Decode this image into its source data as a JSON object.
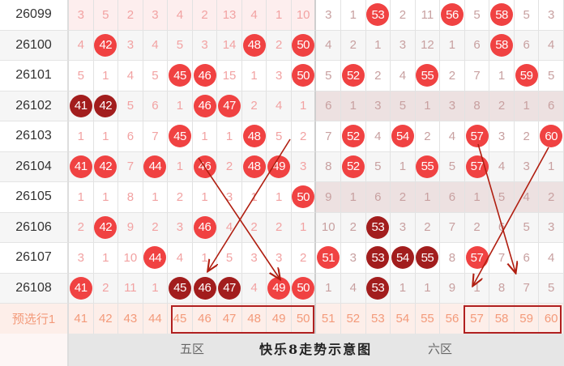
{
  "rows": [
    {
      "issue": "26099",
      "cells": [
        "3",
        "5",
        "2",
        "3",
        "4",
        "2",
        "13",
        "4",
        "1",
        "10",
        "3",
        "1",
        "53",
        "2",
        "11",
        "56",
        "5",
        "58",
        "5",
        "3"
      ],
      "hits": [
        "53",
        "56",
        "58"
      ],
      "repeats": []
    },
    {
      "issue": "26100",
      "cells": [
        "4",
        "42",
        "3",
        "4",
        "5",
        "3",
        "14",
        "48",
        "2",
        "50",
        "4",
        "2",
        "1",
        "3",
        "12",
        "1",
        "6",
        "58",
        "6",
        "4"
      ],
      "hits": [
        "42",
        "48",
        "50",
        "58"
      ],
      "repeats": []
    },
    {
      "issue": "26101",
      "cells": [
        "5",
        "1",
        "4",
        "5",
        "45",
        "46",
        "15",
        "1",
        "3",
        "50",
        "5",
        "52",
        "2",
        "4",
        "55",
        "2",
        "7",
        "1",
        "59",
        "5"
      ],
      "hits": [
        "45",
        "46",
        "50",
        "52",
        "55",
        "59"
      ],
      "repeats": []
    },
    {
      "issue": "26102",
      "cells": [
        "41",
        "42",
        "5",
        "6",
        "1",
        "46",
        "47",
        "2",
        "4",
        "1",
        "6",
        "1",
        "3",
        "5",
        "1",
        "3",
        "8",
        "2",
        "1",
        "6"
      ],
      "hits": [
        "46",
        "47"
      ],
      "repeats": [
        "41",
        "42"
      ]
    },
    {
      "issue": "26103",
      "cells": [
        "1",
        "1",
        "6",
        "7",
        "45",
        "1",
        "1",
        "48",
        "5",
        "2",
        "7",
        "52",
        "4",
        "54",
        "2",
        "4",
        "57",
        "3",
        "2",
        "60"
      ],
      "hits": [
        "45",
        "48",
        "52",
        "54",
        "57",
        "60"
      ],
      "repeats": []
    },
    {
      "issue": "26104",
      "cells": [
        "41",
        "42",
        "7",
        "44",
        "1",
        "46",
        "2",
        "48",
        "49",
        "3",
        "8",
        "52",
        "5",
        "1",
        "55",
        "5",
        "57",
        "4",
        "3",
        "1"
      ],
      "hits": [
        "41",
        "42",
        "44",
        "46",
        "48",
        "49",
        "52",
        "55",
        "57"
      ],
      "repeats": []
    },
    {
      "issue": "26105",
      "cells": [
        "1",
        "1",
        "8",
        "1",
        "2",
        "1",
        "3",
        "1",
        "1",
        "50",
        "9",
        "1",
        "6",
        "2",
        "1",
        "6",
        "1",
        "5",
        "4",
        "2"
      ],
      "hits": [
        "50"
      ],
      "repeats": []
    },
    {
      "issue": "26106",
      "cells": [
        "2",
        "42",
        "9",
        "2",
        "3",
        "46",
        "4",
        "2",
        "2",
        "1",
        "10",
        "2",
        "53",
        "3",
        "2",
        "7",
        "2",
        "6",
        "5",
        "3"
      ],
      "hits": [
        "42",
        "46"
      ],
      "repeats": [
        "53"
      ]
    },
    {
      "issue": "26107",
      "cells": [
        "3",
        "1",
        "10",
        "44",
        "4",
        "1",
        "5",
        "3",
        "3",
        "2",
        "51",
        "3",
        "53",
        "54",
        "55",
        "8",
        "57",
        "7",
        "6",
        "4"
      ],
      "hits": [
        "44",
        "51",
        "57"
      ],
      "repeats": [
        "53",
        "54",
        "55"
      ]
    },
    {
      "issue": "26108",
      "cells": [
        "41",
        "2",
        "11",
        "1",
        "45",
        "46",
        "47",
        "4",
        "49",
        "50",
        "1",
        "4",
        "53",
        "1",
        "1",
        "9",
        "1",
        "8",
        "7",
        "5"
      ],
      "hits": [
        "41",
        "49",
        "50"
      ],
      "repeats": [
        "45",
        "46",
        "47",
        "53"
      ]
    }
  ],
  "preselect": {
    "label": "预选行1",
    "cells": [
      "41",
      "42",
      "43",
      "44",
      "45",
      "46",
      "47",
      "48",
      "49",
      "50",
      "51",
      "52",
      "53",
      "54",
      "55",
      "56",
      "57",
      "58",
      "59",
      "60"
    ],
    "boxed": [
      [
        "45",
        "50"
      ],
      [
        "57",
        "60"
      ]
    ]
  },
  "footer": {
    "zone5": "五区",
    "title": "快乐8走势示意图",
    "zone6": "六区"
  },
  "colors": {
    "hit": "#f04242",
    "repeat": "#a21d1d",
    "box": "#b02020",
    "arrow": "#b01e10"
  }
}
